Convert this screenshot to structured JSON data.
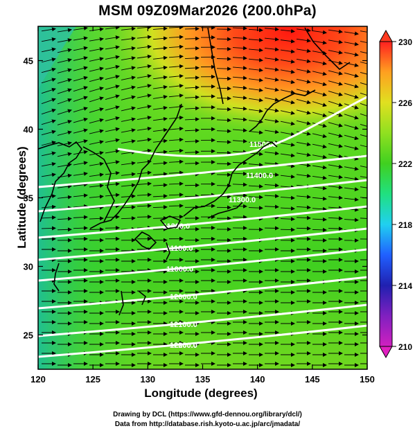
{
  "title": "MSM 09Z09Mar2026 (200.0hPa)",
  "x_axis": {
    "label": "Longitude (degrees)",
    "ticks": [
      "120",
      "125",
      "130",
      "135",
      "140",
      "145",
      "150"
    ],
    "range": [
      120,
      150
    ]
  },
  "y_axis": {
    "label": "Latitude  (degrees)",
    "ticks": [
      "25",
      "30",
      "35",
      "40",
      "45"
    ],
    "range": [
      22.5,
      47.5
    ]
  },
  "colorbar": {
    "ticks": [
      "210",
      "214",
      "218",
      "222",
      "226",
      "230"
    ],
    "range": [
      210,
      230
    ],
    "colors": [
      "#d020c0",
      "#2020b0",
      "#2060ff",
      "#20d0f0",
      "#20e080",
      "#40d020",
      "#90e020",
      "#e0e020",
      "#ffa020",
      "#ff5020",
      "#ff2020"
    ]
  },
  "contour_labels": [
    "11500.0",
    "11400.0",
    "11300.0",
    "11200.0",
    "11100.0",
    "11000.0",
    "12000.0",
    "12100.0",
    "12200.0",
    "12300.0"
  ],
  "credits": {
    "line1": "Drawing by DCL (https://www.gfd-dennou.org/library/dcl/)",
    "line2": "Data from http://database.rish.kyoto-u.ac.jp/arc/jmadata/"
  }
}
